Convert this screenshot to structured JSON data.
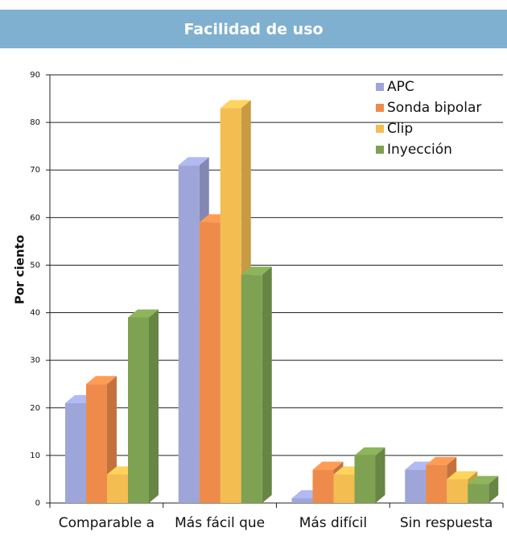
{
  "chart_data": {
    "type": "bar3d",
    "title": "Facilidad de uso",
    "ylabel": "Por ciento",
    "categories": [
      "Comparable a",
      "Más fácil que",
      "Más difícil",
      "Sin respuesta"
    ],
    "series": [
      {
        "name": "APC",
        "color": "#9ea6d9",
        "values": [
          21,
          71,
          1,
          7
        ]
      },
      {
        "name": "Sonda bipolar",
        "color": "#ee8b4b",
        "values": [
          25,
          59,
          7,
          8
        ]
      },
      {
        "name": "Clip",
        "color": "#f3bd52",
        "values": [
          6,
          83,
          6,
          5
        ]
      },
      {
        "name": "Inyección",
        "color": "#7ea252",
        "values": [
          39,
          48,
          10,
          4
        ]
      }
    ],
    "ylim": [
      0,
      90
    ],
    "yticks": [
      0,
      10,
      20,
      30,
      40,
      50,
      60,
      70,
      80,
      90
    ],
    "grid": true,
    "legend": "upper right"
  }
}
